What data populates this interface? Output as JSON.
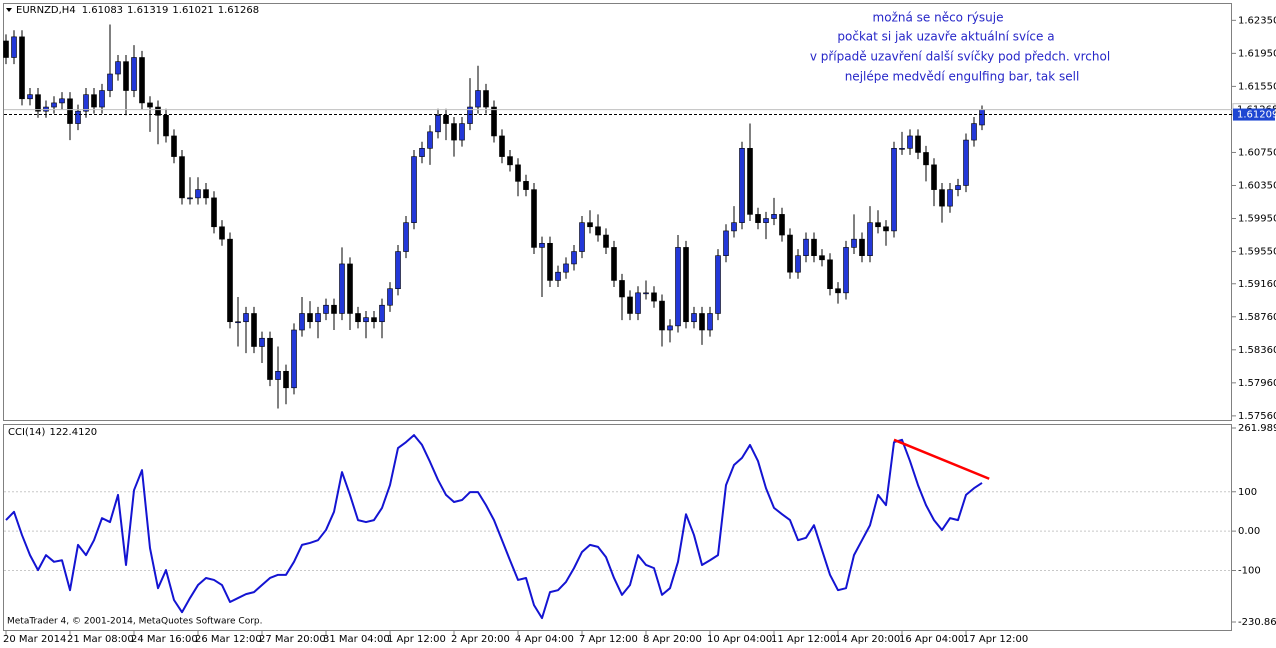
{
  "chart_data": [
    {
      "type": "candlestick",
      "title": "EURNZD,H4",
      "categories": [
        "20 Mar 2014",
        null,
        null,
        null,
        null,
        null,
        null,
        null,
        "21 Mar 08:00",
        null,
        null,
        null,
        null,
        null,
        null,
        null,
        "24 Mar 16:00",
        null,
        null,
        null,
        null,
        null,
        null,
        null,
        "26 Mar 12:00",
        null,
        null,
        null,
        null,
        null,
        null,
        null,
        "27 Mar 20:00",
        null,
        null,
        null,
        null,
        null,
        null,
        null,
        "31 Mar 04:00",
        null,
        null,
        null,
        null,
        null,
        null,
        null,
        "1 Apr 12:00",
        null,
        null,
        null,
        null,
        null,
        null,
        null,
        "2 Apr 20:00",
        null,
        null,
        null,
        null,
        null,
        null,
        null,
        "4 Apr 04:00",
        null,
        null,
        null,
        null,
        null,
        null,
        null,
        "7 Apr 12:00",
        null,
        null,
        null,
        null,
        null,
        null,
        null,
        "8 Apr 20:00",
        null,
        null,
        null,
        null,
        null,
        null,
        null,
        "10 Apr 04:00",
        null,
        null,
        null,
        null,
        null,
        null,
        null,
        "11 Apr 12:00",
        null,
        null,
        null,
        null,
        null,
        null,
        null,
        "14 Apr 20:00",
        null,
        null,
        null,
        null,
        null,
        null,
        null,
        "16 Apr 04:00",
        null,
        null,
        null,
        null,
        null,
        null,
        null,
        "17 Apr 12:00",
        null,
        null
      ],
      "open": [
        1.621,
        1.619,
        1.6215,
        1.614,
        1.6145,
        1.6125,
        1.613,
        1.6135,
        1.614,
        1.611,
        1.6125,
        1.6145,
        1.613,
        1.615,
        1.617,
        1.6185,
        1.615,
        1.619,
        1.6135,
        1.613,
        1.612,
        1.6095,
        1.607,
        1.602,
        1.602,
        1.603,
        1.602,
        1.5985,
        1.597,
        1.587,
        1.587,
        1.588,
        1.584,
        1.585,
        1.58,
        1.581,
        1.579,
        1.586,
        1.588,
        1.587,
        1.588,
        1.589,
        1.588,
        1.594,
        1.588,
        1.587,
        1.5875,
        1.587,
        1.589,
        1.591,
        1.5955,
        1.599,
        1.607,
        1.608,
        1.61,
        1.612,
        1.611,
        1.609,
        1.611,
        1.613,
        1.615,
        1.613,
        1.6095,
        1.607,
        1.606,
        1.604,
        1.603,
        1.596,
        1.5965,
        1.592,
        1.593,
        1.594,
        1.5955,
        1.599,
        1.5985,
        1.5975,
        1.596,
        1.592,
        1.59,
        1.588,
        1.5905,
        1.5905,
        1.5895,
        1.586,
        1.5865,
        1.596,
        1.587,
        1.588,
        1.586,
        1.588,
        1.595,
        1.598,
        1.599,
        1.608,
        1.6,
        1.599,
        1.5995,
        1.6,
        1.5975,
        1.593,
        1.595,
        1.597,
        1.595,
        1.5945,
        1.591,
        1.5905,
        1.596,
        1.597,
        1.595,
        1.599,
        1.5985,
        1.598,
        1.608,
        1.608,
        1.6095,
        1.6075,
        1.606,
        1.603,
        1.601,
        1.603,
        1.6035,
        1.609,
        1.61083
      ],
      "high": [
        1.6218,
        1.6223,
        1.6223,
        1.6153,
        1.6153,
        1.6138,
        1.6143,
        1.6148,
        1.6148,
        1.6133,
        1.6153,
        1.6153,
        1.6158,
        1.623,
        1.6193,
        1.6193,
        1.6205,
        1.6198,
        1.6143,
        1.6138,
        1.6128,
        1.6103,
        1.6078,
        1.6045,
        1.6045,
        1.6038,
        1.6028,
        1.5993,
        1.5978,
        1.59,
        1.5888,
        1.5888,
        1.5858,
        1.5858,
        1.584,
        1.5818,
        1.5868,
        1.59,
        1.5895,
        1.5888,
        1.5898,
        1.5898,
        1.596,
        1.5948,
        1.5888,
        1.5883,
        1.5883,
        1.5898,
        1.5918,
        1.5963,
        1.5998,
        1.6078,
        1.6088,
        1.6108,
        1.6128,
        1.6128,
        1.6118,
        1.6118,
        1.6165,
        1.618,
        1.6158,
        1.6138,
        1.6103,
        1.6078,
        1.6068,
        1.6048,
        1.6038,
        1.5973,
        1.5973,
        1.5938,
        1.5948,
        1.5963,
        1.5998,
        1.6005,
        1.6,
        1.5983,
        1.5968,
        1.5928,
        1.5908,
        1.5913,
        1.592,
        1.5913,
        1.5903,
        1.5873,
        1.5975,
        1.5968,
        1.5888,
        1.5888,
        1.5888,
        1.5958,
        1.5988,
        1.601,
        1.6088,
        1.611,
        1.6008,
        1.6003,
        1.602,
        1.6008,
        1.5983,
        1.5958,
        1.5978,
        1.5978,
        1.5958,
        1.5953,
        1.5918,
        1.5968,
        1.6,
        1.5978,
        1.601,
        1.6005,
        1.5993,
        1.6088,
        1.61,
        1.6103,
        1.6103,
        1.6083,
        1.6068,
        1.6038,
        1.6038,
        1.6043,
        1.6098,
        1.6118,
        1.61319
      ],
      "low": [
        1.6182,
        1.6182,
        1.6132,
        1.6132,
        1.6117,
        1.6117,
        1.6122,
        1.6127,
        1.609,
        1.6102,
        1.6117,
        1.6122,
        1.6122,
        1.6142,
        1.6162,
        1.612,
        1.6142,
        1.6127,
        1.61,
        1.6085,
        1.6087,
        1.6062,
        1.6012,
        1.6012,
        1.6012,
        1.6012,
        1.5977,
        1.5962,
        1.5862,
        1.584,
        1.5832,
        1.5832,
        1.582,
        1.5792,
        1.5765,
        1.577,
        1.5782,
        1.5852,
        1.5862,
        1.585,
        1.5872,
        1.586,
        1.5872,
        1.586,
        1.5862,
        1.585,
        1.5862,
        1.585,
        1.5882,
        1.5902,
        1.5947,
        1.5982,
        1.6062,
        1.606,
        1.6092,
        1.609,
        1.607,
        1.6082,
        1.6102,
        1.6122,
        1.6122,
        1.6087,
        1.6062,
        1.6052,
        1.6022,
        1.6022,
        1.5952,
        1.59,
        1.5912,
        1.5912,
        1.5922,
        1.5932,
        1.5947,
        1.5977,
        1.5967,
        1.5952,
        1.5912,
        1.5872,
        1.5872,
        1.5872,
        1.5897,
        1.5887,
        1.584,
        1.5845,
        1.5857,
        1.5862,
        1.5862,
        1.5842,
        1.5852,
        1.5872,
        1.5942,
        1.5972,
        1.5982,
        1.5992,
        1.5982,
        1.597,
        1.5987,
        1.5967,
        1.5922,
        1.5922,
        1.5942,
        1.5942,
        1.5937,
        1.5902,
        1.5892,
        1.5897,
        1.5952,
        1.5942,
        1.5942,
        1.5977,
        1.5962,
        1.5972,
        1.6072,
        1.6072,
        1.6067,
        1.604,
        1.601,
        1.599,
        1.6002,
        1.6022,
        1.6027,
        1.6082,
        1.61021
      ],
      "close": [
        1.619,
        1.6215,
        1.614,
        1.6145,
        1.6125,
        1.613,
        1.6135,
        1.614,
        1.611,
        1.6125,
        1.6145,
        1.613,
        1.615,
        1.617,
        1.6185,
        1.615,
        1.619,
        1.6135,
        1.613,
        1.612,
        1.6095,
        1.607,
        1.602,
        1.602,
        1.603,
        1.602,
        1.5985,
        1.597,
        1.587,
        1.587,
        1.588,
        1.584,
        1.585,
        1.58,
        1.581,
        1.579,
        1.586,
        1.588,
        1.587,
        1.588,
        1.589,
        1.588,
        1.594,
        1.588,
        1.587,
        1.5875,
        1.587,
        1.589,
        1.591,
        1.5955,
        1.599,
        1.607,
        1.608,
        1.61,
        1.612,
        1.611,
        1.609,
        1.611,
        1.613,
        1.615,
        1.613,
        1.6095,
        1.607,
        1.606,
        1.604,
        1.603,
        1.596,
        1.5965,
        1.592,
        1.593,
        1.594,
        1.5955,
        1.599,
        1.5985,
        1.5975,
        1.596,
        1.592,
        1.59,
        1.588,
        1.5905,
        1.5905,
        1.5895,
        1.586,
        1.5865,
        1.596,
        1.587,
        1.588,
        1.586,
        1.588,
        1.595,
        1.598,
        1.599,
        1.608,
        1.6,
        1.599,
        1.5995,
        1.6,
        1.5975,
        1.593,
        1.595,
        1.597,
        1.595,
        1.5945,
        1.591,
        1.5905,
        1.596,
        1.597,
        1.595,
        1.599,
        1.5985,
        1.598,
        1.608,
        1.608,
        1.6095,
        1.6075,
        1.606,
        1.603,
        1.601,
        1.603,
        1.6035,
        1.609,
        1.611,
        1.61268
      ],
      "colors": {
        "up": "#2338d8",
        "down": "#000000",
        "wick": "#000000"
      },
      "ylim": [
        1.5751,
        1.6256
      ],
      "yticks": [
        {
          "value": 1.6235,
          "label": "1.62350"
        },
        {
          "value": 1.6195,
          "label": "1.61950"
        },
        {
          "value": 1.6155,
          "label": "1.61550"
        },
        {
          "value": 1.6075,
          "label": "1.60750"
        },
        {
          "value": 1.6035,
          "label": "1.60350"
        },
        {
          "value": 1.5995,
          "label": "1.59950"
        },
        {
          "value": 1.5955,
          "label": "1.59550"
        },
        {
          "value": 1.5916,
          "label": "1.59160"
        },
        {
          "value": 1.5876,
          "label": "1.58760"
        },
        {
          "value": 1.5836,
          "label": "1.58360"
        },
        {
          "value": 1.5796,
          "label": "1.57960"
        },
        {
          "value": 1.5756,
          "label": "1.57560"
        }
      ],
      "price_line": 1.61209,
      "annotations": [
        "možná se něco rýsuje",
        "počkat si jak uzavře aktuální svíce a",
        "v případě uzavření další svíčky pod předch. vrchol",
        "nejlépe medvědí engulfing bar, tak sell"
      ],
      "annotation_color": "#2626c8"
    },
    {
      "type": "line",
      "title": "CCI(14)",
      "last_value_label": "122.4120",
      "series": [
        {
          "name": "CCI(14)",
          "color": "#1414d2",
          "values": [
            28,
            49,
            -10,
            -61,
            -99,
            -61,
            -78,
            -74,
            -150,
            -35,
            -61,
            -23,
            33,
            23,
            92,
            -86,
            104,
            155,
            -43,
            -145,
            -99,
            -175,
            -206,
            -170,
            -137,
            -119,
            -124,
            -137,
            -180,
            -170,
            -160,
            -155,
            -137,
            -119,
            -111,
            -111,
            -78,
            -35,
            -30,
            -23,
            3,
            49,
            150,
            92,
            28,
            23,
            28,
            59,
            117,
            211,
            226,
            244,
            219,
            176,
            130,
            92,
            74,
            79,
            99,
            99,
            66,
            28,
            -23,
            -74,
            -124,
            -119,
            -188,
            -221,
            -155,
            -150,
            -129,
            -94,
            -53,
            -35,
            -40,
            -66,
            -119,
            -162,
            -137,
            -61,
            -86,
            -94,
            -162,
            -145,
            -78,
            43,
            -10,
            -86,
            -74,
            -61,
            117,
            168,
            186,
            219,
            178,
            109,
            59,
            43,
            28,
            -23,
            -17,
            15,
            -48,
            -111,
            -150,
            -145,
            -61,
            -23,
            15,
            92,
            66,
            226,
            232,
            178,
            117,
            66,
            28,
            3,
            33,
            28,
            92,
            109,
            122.412
          ]
        }
      ],
      "ylim": [
        -230.8665,
        261.9896
      ],
      "yticks": [
        261.9896,
        100,
        {
          "value": 0,
          "label": "0.00"
        },
        -100,
        -230.8665
      ],
      "trendline": {
        "color": "#ff0000",
        "x": [
          111,
          122.9
        ],
        "y": [
          232,
          133
        ]
      },
      "annotations": [
        "MetaTrader 4, © 2001-2014, MetaQuotes Software Corp."
      ]
    }
  ]
}
